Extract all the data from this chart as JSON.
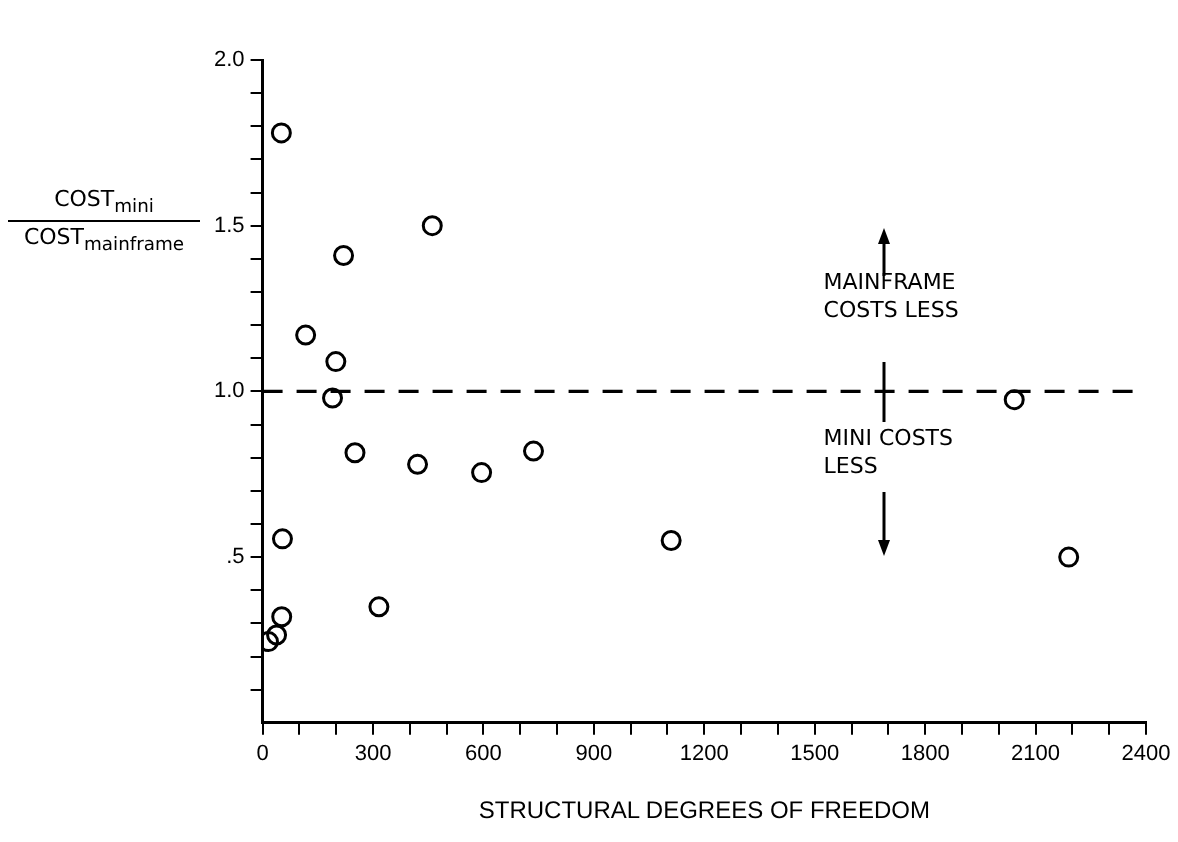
{
  "chart_data": {
    "type": "scatter",
    "xlabel": "STRUCTURAL DEGREES OF FREEDOM",
    "ylabel": "COST$_{mini}$\nCOST$_{mainframe}$",
    "x": [
      51,
      461,
      220,
      117,
      199,
      190,
      251,
      421,
      595,
      736,
      54,
      316,
      52,
      38,
      16,
      1110,
      2042,
      2190
    ],
    "series": [
      {
        "color": "#000000",
        "values": [
          1.78,
          1.5,
          1.41,
          1.17,
          1.09,
          0.98,
          0.815,
          0.78,
          0.755,
          0.82,
          0.555,
          0.35,
          0.32,
          0.265,
          0.245,
          0.55,
          0.975,
          0.5
        ]
      }
    ],
    "marker": "circle",
    "grid": false,
    "legend": false,
    "xlim": [
      0,
      2400
    ],
    "xticks": [
      0,
      {
        "value": 100,
        "label": null
      },
      {
        "value": 200,
        "label": null
      },
      300,
      {
        "value": 400,
        "label": null
      },
      {
        "value": 500,
        "label": null
      },
      600,
      {
        "value": 700,
        "label": null
      },
      {
        "value": 800,
        "label": null
      },
      900,
      {
        "value": 1000,
        "label": null
      },
      {
        "value": 1100,
        "label": null
      },
      1200,
      {
        "value": 1300,
        "label": null
      },
      {
        "value": 1400,
        "label": null
      },
      1500,
      {
        "value": 1600,
        "label": null
      },
      {
        "value": 1700,
        "label": null
      },
      1800,
      {
        "value": 1900,
        "label": null
      },
      {
        "value": 2000,
        "label": null
      },
      2100,
      {
        "value": 2200,
        "label": null
      },
      {
        "value": 2300,
        "label": null
      },
      2400
    ],
    "ylim": [
      0,
      2.0
    ],
    "yticks": [
      {
        "value": 0.1,
        "label": null
      },
      {
        "value": 0.2,
        "label": null
      },
      {
        "value": 0.3,
        "label": null
      },
      {
        "value": 0.4,
        "label": null
      },
      {
        "value": 0.5,
        "label": ".5"
      },
      {
        "value": 0.6,
        "label": null
      },
      {
        "value": 0.7,
        "label": null
      },
      {
        "value": 0.8,
        "label": null
      },
      {
        "value": 0.9,
        "label": null
      },
      {
        "value": 1.0,
        "label": "1.0"
      },
      {
        "value": 1.1,
        "label": null
      },
      {
        "value": 1.2,
        "label": null
      },
      {
        "value": 1.3,
        "label": null
      },
      {
        "value": 1.4,
        "label": null
      },
      1.5,
      {
        "value": 1.6,
        "label": null
      },
      {
        "value": 1.7,
        "label": null
      },
      {
        "value": 1.8,
        "label": null
      },
      {
        "value": 1.9,
        "label": null
      },
      {
        "value": 2.0,
        "label": "2.0"
      }
    ],
    "ref_lines": [
      {
        "axis": "y",
        "value": 1.0,
        "color": "#000000",
        "line_style": "dashed"
      }
    ],
    "annotations": [
      "MAINFRAME\nCOSTS LESS",
      "MINI COSTS\nLESS"
    ]
  }
}
